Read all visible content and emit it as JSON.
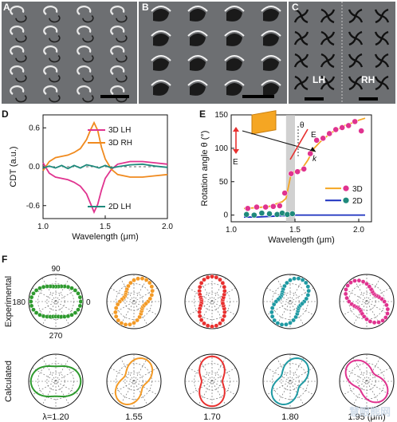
{
  "panels": {
    "A": {
      "label": "A"
    },
    "B": {
      "label": "B"
    },
    "C": {
      "label": "C",
      "lh": "LH",
      "rh": "RH"
    },
    "D": {
      "label": "D"
    },
    "E": {
      "label": "E"
    },
    "F": {
      "label": "F"
    }
  },
  "colors": {
    "lh3d": "#e0338f",
    "rh3d": "#f08a1e",
    "lh2d": "#1f8a7c",
    "e3d_line": "#f5a623",
    "e3d_pts": "#e0338f",
    "e2d_line": "#1a2fbf",
    "e2d_pts": "#1f8a7c",
    "polar": [
      "#2e9a2e",
      "#f39a26",
      "#e8302f",
      "#1f9aa3",
      "#e0338f"
    ]
  },
  "chart_data": [
    {
      "type": "line",
      "id": "D",
      "xlabel": "Wavelength (μm)",
      "ylabel": "CDT (a.u.)",
      "xlim": [
        1.0,
        2.0
      ],
      "ylim": [
        -0.8,
        0.8
      ],
      "xticks": [
        "1.0",
        "1.5",
        "2.0"
      ],
      "yticks": [
        "0.6",
        "0.0",
        "-0.6"
      ],
      "series": [
        {
          "name": "3D LH",
          "x": [
            1.0,
            1.05,
            1.1,
            1.15,
            1.2,
            1.25,
            1.3,
            1.35,
            1.38,
            1.41,
            1.44,
            1.47,
            1.5,
            1.55,
            1.6,
            1.7,
            1.8,
            1.9,
            2.0
          ],
          "values": [
            0.06,
            -0.1,
            -0.16,
            -0.18,
            -0.2,
            -0.24,
            -0.3,
            -0.42,
            -0.56,
            -0.7,
            -0.58,
            -0.36,
            -0.18,
            -0.04,
            0.04,
            0.08,
            0.08,
            0.06,
            0.04
          ]
        },
        {
          "name": "3D RH",
          "x": [
            1.0,
            1.05,
            1.1,
            1.15,
            1.2,
            1.25,
            1.3,
            1.35,
            1.38,
            1.41,
            1.44,
            1.47,
            1.5,
            1.55,
            1.6,
            1.7,
            1.8,
            1.9,
            2.0
          ],
          "values": [
            -0.06,
            0.08,
            0.14,
            0.16,
            0.18,
            0.22,
            0.28,
            0.42,
            0.56,
            0.68,
            0.56,
            0.3,
            0.12,
            -0.04,
            -0.12,
            -0.16,
            -0.16,
            -0.14,
            -0.12
          ]
        },
        {
          "name": "2D LH",
          "x": [
            1.0,
            1.05,
            1.1,
            1.15,
            1.2,
            1.25,
            1.3,
            1.35,
            1.4,
            1.45,
            1.5,
            1.55,
            1.6,
            1.7,
            1.8,
            1.9,
            2.0
          ],
          "values": [
            -0.02,
            0.01,
            -0.02,
            0.02,
            -0.03,
            0.02,
            -0.02,
            0.03,
            0.01,
            -0.02,
            0.02,
            -0.02,
            0.0,
            0.03,
            0.04,
            0.01,
            -0.01
          ]
        }
      ]
    },
    {
      "type": "line",
      "id": "E",
      "xlabel": "Wavelength (μm)",
      "ylabel": "Rotation angle θ (°)",
      "xlim": [
        1.0,
        2.1
      ],
      "ylim": [
        -10,
        150
      ],
      "xticks": [
        "1.0",
        "1.5",
        "2.0"
      ],
      "yticks": [
        "0",
        "50",
        "100",
        "150"
      ],
      "shade": [
        1.43,
        1.5
      ],
      "inset": {
        "e_left": "E",
        "e_right": "E",
        "theta": "θ",
        "k": "k"
      },
      "series": [
        {
          "name": "3D",
          "x": [
            1.1,
            1.2,
            1.3,
            1.4,
            1.43,
            1.47,
            1.5,
            1.55,
            1.6,
            1.65,
            1.7,
            1.75,
            1.8,
            1.85,
            1.9,
            1.95,
            2.0,
            2.05
          ],
          "values": [
            10,
            11,
            13,
            20,
            25,
            62,
            65,
            68,
            82,
            100,
            110,
            118,
            125,
            130,
            135,
            138,
            142,
            145
          ],
          "points_x": [
            1.13,
            1.2,
            1.27,
            1.33,
            1.38,
            1.42,
            1.47,
            1.52,
            1.57,
            1.62,
            1.67,
            1.72,
            1.77,
            1.82,
            1.87,
            1.92,
            1.97,
            2.02
          ],
          "points_y": [
            10,
            12,
            12,
            13,
            14,
            33,
            62,
            65,
            69,
            92,
            112,
            115,
            122,
            128,
            131,
            134,
            140,
            126
          ]
        },
        {
          "name": "2D",
          "x": [
            1.1,
            1.2,
            1.3,
            1.4,
            1.45,
            1.5,
            1.6,
            1.7,
            1.8,
            1.9,
            2.0,
            2.05
          ],
          "values": [
            -3,
            -3,
            -2,
            -1,
            -1,
            0,
            0,
            0,
            0,
            0,
            0,
            0
          ],
          "points_x": [
            1.12,
            1.18,
            1.24,
            1.3,
            1.36,
            1.4,
            1.44,
            1.48
          ],
          "points_y": [
            1,
            0,
            3,
            2,
            1,
            3,
            1,
            2
          ]
        }
      ]
    },
    {
      "type": "polar",
      "id": "F",
      "angle_labels": {
        "top": "90",
        "left": "180",
        "right": "0",
        "bottom": "270"
      },
      "row_labels": [
        "Experimental",
        "Calculated"
      ],
      "wavelengths": [
        "λ=1.20",
        "1.55",
        "1.70",
        "1.80",
        "1.95 (μm)"
      ],
      "orientations_deg": [
        0,
        60,
        90,
        60,
        135
      ],
      "minor_ratio": [
        0.6,
        0.42,
        0.42,
        0.42,
        0.42
      ]
    }
  ],
  "watermark": "慧眼熊网"
}
